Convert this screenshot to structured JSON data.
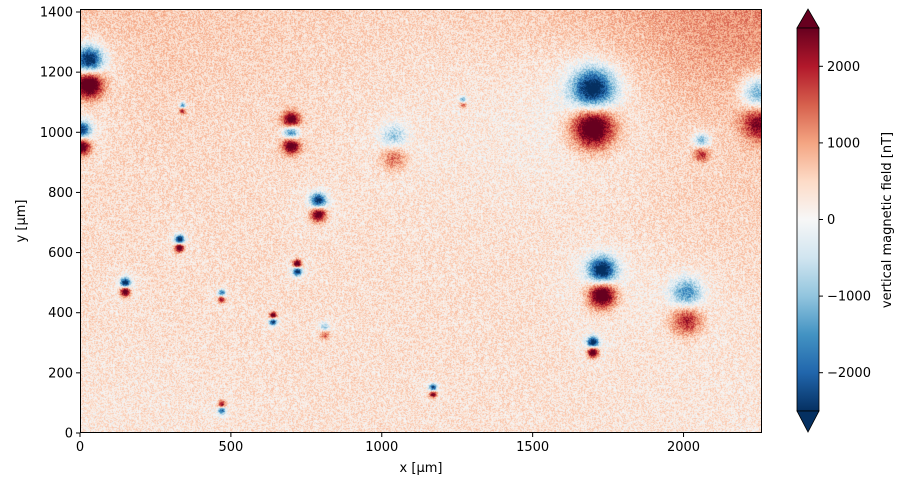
{
  "chart_data": {
    "type": "heatmap",
    "title": "",
    "xlabel": "x [µm]",
    "ylabel": "y [µm]",
    "xlim": [
      0,
      2260
    ],
    "ylim": [
      0,
      1410
    ],
    "xticks": [
      0,
      500,
      1000,
      1500,
      2000
    ],
    "yticks": [
      0,
      200,
      400,
      600,
      800,
      1000,
      1200,
      1400
    ],
    "grid": false,
    "colorbar": {
      "label": "vertical magnetic field [nT]",
      "colormap": "RdBu_r",
      "vmin": -2500,
      "vmax": 2500,
      "extend": "both",
      "ticks": [
        -2000,
        -1000,
        0,
        1000,
        2000
      ],
      "tick_labels": [
        "−2000",
        "−1000",
        "0",
        "1000",
        "2000"
      ]
    },
    "background_gradient": [
      {
        "x": 0,
        "y": 1410,
        "value": 700
      },
      {
        "x": 2260,
        "y": 1410,
        "value": 1300
      },
      {
        "x": 1400,
        "y": 1000,
        "value": 150
      },
      {
        "x": 300,
        "y": 700,
        "value": 400
      },
      {
        "x": 0,
        "y": 0,
        "value": 250
      },
      {
        "x": 2260,
        "y": 0,
        "value": 250
      }
    ],
    "sources": [
      {
        "x": 30,
        "y": 1200,
        "negative_lobe": "top",
        "strength": 2500,
        "radius": 45
      },
      {
        "x": 5,
        "y": 980,
        "negative_lobe": "top",
        "strength": 2200,
        "radius": 30
      },
      {
        "x": 700,
        "y": 1000,
        "negative_lobe": "center",
        "strength": 2500,
        "radius": 28
      },
      {
        "x": 790,
        "y": 750,
        "negative_lobe": "top",
        "strength": 2200,
        "radius": 25
      },
      {
        "x": 330,
        "y": 630,
        "negative_lobe": "top",
        "strength": 2500,
        "radius": 15
      },
      {
        "x": 150,
        "y": 485,
        "negative_lobe": "top",
        "strength": 2500,
        "radius": 16
      },
      {
        "x": 470,
        "y": 455,
        "negative_lobe": "top",
        "strength": 1600,
        "radius": 12
      },
      {
        "x": 640,
        "y": 380,
        "negative_lobe": "bottom",
        "strength": 2200,
        "radius": 12
      },
      {
        "x": 720,
        "y": 550,
        "negative_lobe": "bottom",
        "strength": 2500,
        "radius": 14
      },
      {
        "x": 470,
        "y": 85,
        "negative_lobe": "bottom",
        "strength": 1800,
        "radius": 12
      },
      {
        "x": 1170,
        "y": 140,
        "negative_lobe": "top",
        "strength": 2000,
        "radius": 12
      },
      {
        "x": 1700,
        "y": 1080,
        "negative_lobe": "top",
        "strength": 2500,
        "radius": 70
      },
      {
        "x": 1730,
        "y": 500,
        "negative_lobe": "top",
        "strength": 2500,
        "radius": 45
      },
      {
        "x": 1700,
        "y": 285,
        "negative_lobe": "top",
        "strength": 2500,
        "radius": 18
      },
      {
        "x": 2010,
        "y": 420,
        "negative_lobe": "top",
        "strength": 1400,
        "radius": 50
      },
      {
        "x": 1040,
        "y": 950,
        "negative_lobe": "top",
        "strength": 900,
        "radius": 40
      },
      {
        "x": 2250,
        "y": 1080,
        "negative_lobe": "top",
        "strength": 1500,
        "radius": 55
      },
      {
        "x": 2060,
        "y": 950,
        "negative_lobe": "top",
        "strength": 1200,
        "radius": 25
      },
      {
        "x": 340,
        "y": 1080,
        "negative_lobe": "top",
        "strength": 1400,
        "radius": 10
      },
      {
        "x": 1270,
        "y": 1100,
        "negative_lobe": "top",
        "strength": 1200,
        "radius": 10
      },
      {
        "x": 810,
        "y": 340,
        "negative_lobe": "top",
        "strength": 1000,
        "radius": 15
      }
    ]
  }
}
